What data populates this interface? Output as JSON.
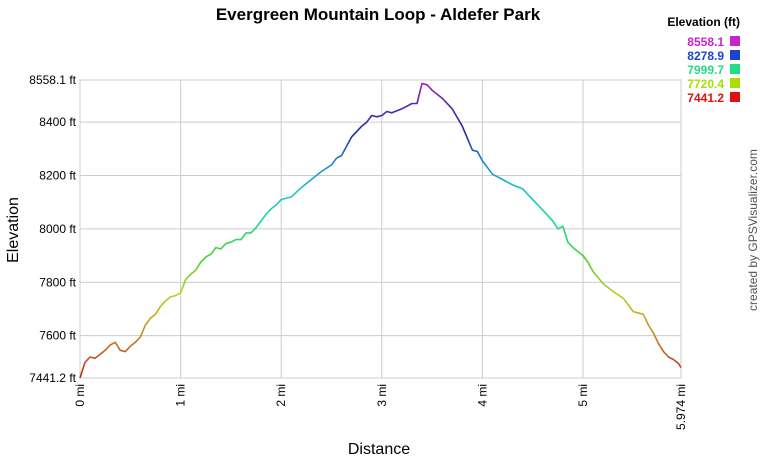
{
  "chart_data": {
    "type": "line",
    "title": "Evergreen Mountain Loop - Aldefer Park",
    "xlabel": "Distance",
    "ylabel": "Elevation",
    "x_unit": "mi",
    "y_unit": "ft",
    "xlim": [
      0,
      5.974
    ],
    "ylim": [
      7441.2,
      8558.1
    ],
    "x_ticks": [
      "0 mi",
      "1 mi",
      "2 mi",
      "3 mi",
      "4 mi",
      "5 mi",
      "5.974 mi"
    ],
    "x_tick_values": [
      0,
      1,
      2,
      3,
      4,
      5,
      5.974
    ],
    "y_ticks": [
      "7441.2 ft",
      "7600 ft",
      "7800 ft",
      "8000 ft",
      "8200 ft",
      "8400 ft",
      "8558.1 ft"
    ],
    "y_tick_values": [
      7441.2,
      7600,
      7800,
      8000,
      8200,
      8400,
      8558.1
    ],
    "grid": true,
    "legend": {
      "title": "Elevation (ft)",
      "placement": "top-right",
      "entries": [
        {
          "label": "8558.1",
          "color": "#cc22cc"
        },
        {
          "label": "8278.9",
          "color": "#1a44cc"
        },
        {
          "label": "7999.7",
          "color": "#22dd88"
        },
        {
          "label": "7720.4",
          "color": "#aadd00"
        },
        {
          "label": "7441.2",
          "color": "#dd1111"
        }
      ]
    },
    "series": [
      {
        "x": [
          0,
          0.05,
          0.1,
          0.15,
          0.2,
          0.25,
          0.3,
          0.35,
          0.4,
          0.45,
          0.5,
          0.55,
          0.6,
          0.65,
          0.7,
          0.75,
          0.8,
          0.85,
          0.9,
          0.95,
          1.0,
          1.05,
          1.1,
          1.15,
          1.2,
          1.25,
          1.3,
          1.35,
          1.4,
          1.45,
          1.5,
          1.55,
          1.6,
          1.65,
          1.7,
          1.75,
          1.8,
          1.85,
          1.9,
          1.95,
          2.0,
          2.1,
          2.2,
          2.3,
          2.4,
          2.5,
          2.55,
          2.6,
          2.7,
          2.8,
          2.85,
          2.9,
          2.95,
          3.0,
          3.05,
          3.1,
          3.2,
          3.3,
          3.35,
          3.4,
          3.45,
          3.5,
          3.6,
          3.7,
          3.8,
          3.9,
          3.95,
          4.0,
          4.1,
          4.2,
          4.3,
          4.4,
          4.5,
          4.6,
          4.7,
          4.75,
          4.8,
          4.85,
          4.9,
          5.0,
          5.05,
          5.1,
          5.2,
          5.3,
          5.4,
          5.5,
          5.6,
          5.65,
          5.7,
          5.75,
          5.8,
          5.85,
          5.9,
          5.95,
          5.974
        ],
        "values": [
          7441.2,
          7500,
          7520,
          7515,
          7530,
          7545,
          7565,
          7575,
          7545,
          7540,
          7560,
          7575,
          7595,
          7640,
          7665,
          7680,
          7710,
          7730,
          7745,
          7750,
          7760,
          7810,
          7830,
          7845,
          7875,
          7895,
          7905,
          7930,
          7925,
          7945,
          7950,
          7960,
          7960,
          7985,
          7985,
          8005,
          8030,
          8055,
          8075,
          8090,
          8110,
          8120,
          8155,
          8185,
          8215,
          8240,
          8265,
          8275,
          8345,
          8385,
          8400,
          8425,
          8420,
          8425,
          8440,
          8435,
          8450,
          8470,
          8470,
          8545,
          8540,
          8520,
          8490,
          8450,
          8385,
          8295,
          8290,
          8255,
          8205,
          8185,
          8165,
          8150,
          8110,
          8070,
          8030,
          8000,
          8010,
          7950,
          7930,
          7900,
          7875,
          7840,
          7795,
          7765,
          7740,
          7690,
          7680,
          7640,
          7610,
          7570,
          7540,
          7520,
          7510,
          7495,
          7480
        ]
      }
    ]
  },
  "credit_text": "created by GPSVisualizer.com"
}
